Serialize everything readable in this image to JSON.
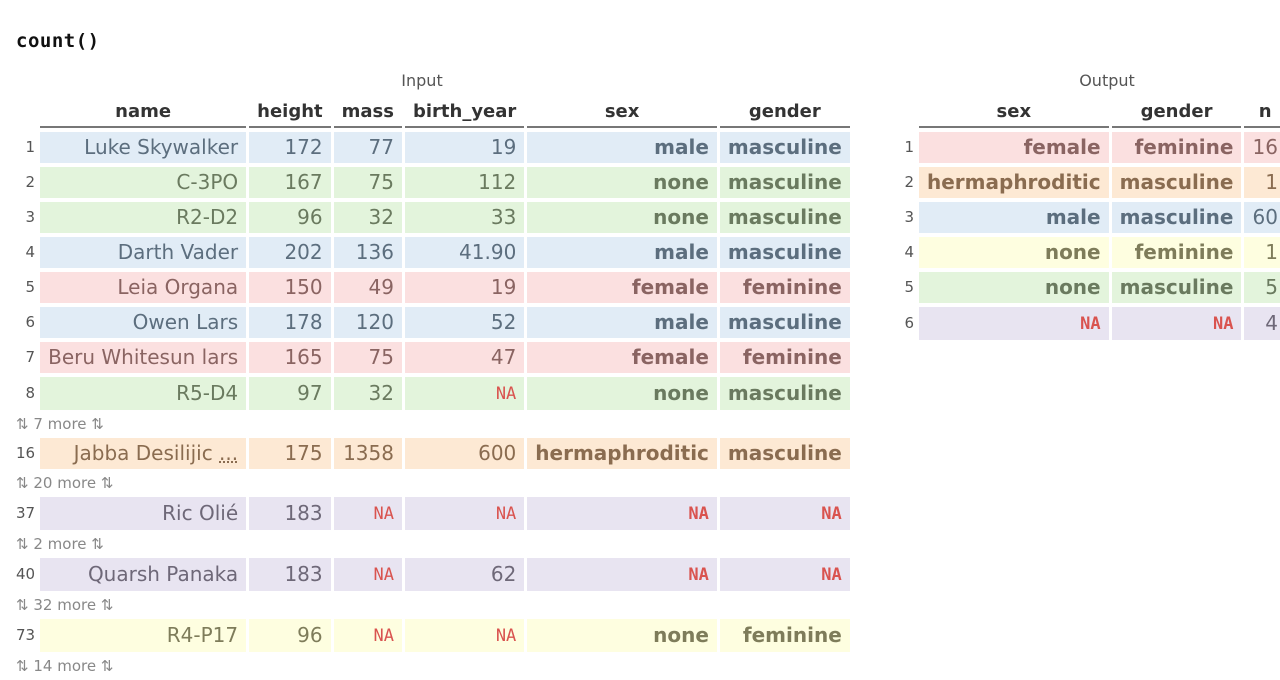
{
  "code": "count()",
  "input": {
    "caption": "Input",
    "columns": [
      "name",
      "height",
      "mass",
      "birth_year",
      "sex",
      "gender"
    ],
    "rows": [
      {
        "idx": "1",
        "name": "Luke Skywalker",
        "height": "172",
        "mass": "77",
        "birth_year": "19",
        "sex": "male",
        "gender": "masculine",
        "color": "blue"
      },
      {
        "idx": "2",
        "name": "C-3PO",
        "height": "167",
        "mass": "75",
        "birth_year": "112",
        "sex": "none",
        "gender": "masculine",
        "color": "green"
      },
      {
        "idx": "3",
        "name": "R2-D2",
        "height": "96",
        "mass": "32",
        "birth_year": "33",
        "sex": "none",
        "gender": "masculine",
        "color": "green"
      },
      {
        "idx": "4",
        "name": "Darth Vader",
        "height": "202",
        "mass": "136",
        "birth_year": "41.90",
        "sex": "male",
        "gender": "masculine",
        "color": "blue"
      },
      {
        "idx": "5",
        "name": "Leia Organa",
        "height": "150",
        "mass": "49",
        "birth_year": "19",
        "sex": "female",
        "gender": "feminine",
        "color": "red"
      },
      {
        "idx": "6",
        "name": "Owen Lars",
        "height": "178",
        "mass": "120",
        "birth_year": "52",
        "sex": "male",
        "gender": "masculine",
        "color": "blue"
      },
      {
        "idx": "7",
        "name": "Beru Whitesun lars",
        "height": "165",
        "mass": "75",
        "birth_year": "47",
        "sex": "female",
        "gender": "feminine",
        "color": "red"
      },
      {
        "idx": "8",
        "name": "R5-D4",
        "height": "97",
        "mass": "32",
        "birth_year": "NA",
        "sex": "none",
        "gender": "masculine",
        "color": "green"
      },
      {
        "more": "7 more"
      },
      {
        "idx": "16",
        "name": "Jabba Desilijic ",
        "name_ellipsis": "...",
        "height": "175",
        "mass": "1358",
        "birth_year": "600",
        "sex": "hermaphroditic",
        "gender": "masculine",
        "color": "orange"
      },
      {
        "more": "20 more"
      },
      {
        "idx": "37",
        "name": "Ric Olié",
        "height": "183",
        "mass": "NA",
        "birth_year": "NA",
        "sex": "NA",
        "gender": "NA",
        "color": "purple"
      },
      {
        "more": "2 more"
      },
      {
        "idx": "40",
        "name": "Quarsh Panaka",
        "height": "183",
        "mass": "NA",
        "birth_year": "62",
        "sex": "NA",
        "gender": "NA",
        "color": "purple"
      },
      {
        "more": "32 more"
      },
      {
        "idx": "73",
        "name": "R4-P17",
        "height": "96",
        "mass": "NA",
        "birth_year": "NA",
        "sex": "none",
        "gender": "feminine",
        "color": "yellow"
      },
      {
        "more": "14 more"
      }
    ]
  },
  "output": {
    "caption": "Output",
    "columns": [
      "sex",
      "gender",
      "n"
    ],
    "rows": [
      {
        "idx": "1",
        "sex": "female",
        "gender": "feminine",
        "n": "16",
        "color": "red"
      },
      {
        "idx": "2",
        "sex": "hermaphroditic",
        "gender": "masculine",
        "n": "1",
        "color": "orange"
      },
      {
        "idx": "3",
        "sex": "male",
        "gender": "masculine",
        "n": "60",
        "color": "blue"
      },
      {
        "idx": "4",
        "sex": "none",
        "gender": "feminine",
        "n": "1",
        "color": "yellow"
      },
      {
        "idx": "5",
        "sex": "none",
        "gender": "masculine",
        "n": "5",
        "color": "green"
      },
      {
        "idx": "6",
        "sex": "NA",
        "gender": "NA",
        "n": "4",
        "color": "purple"
      }
    ]
  },
  "colors": {
    "blue": "#e1ecf6",
    "green": "#e3f4dc",
    "red": "#fbe0e0",
    "orange": "#fde9d4",
    "purple": "#e8e4f1",
    "yellow": "#fefee0",
    "na_text": "#d9534f"
  },
  "icons": {
    "more_arrows": "up-down-arrows-icon"
  }
}
